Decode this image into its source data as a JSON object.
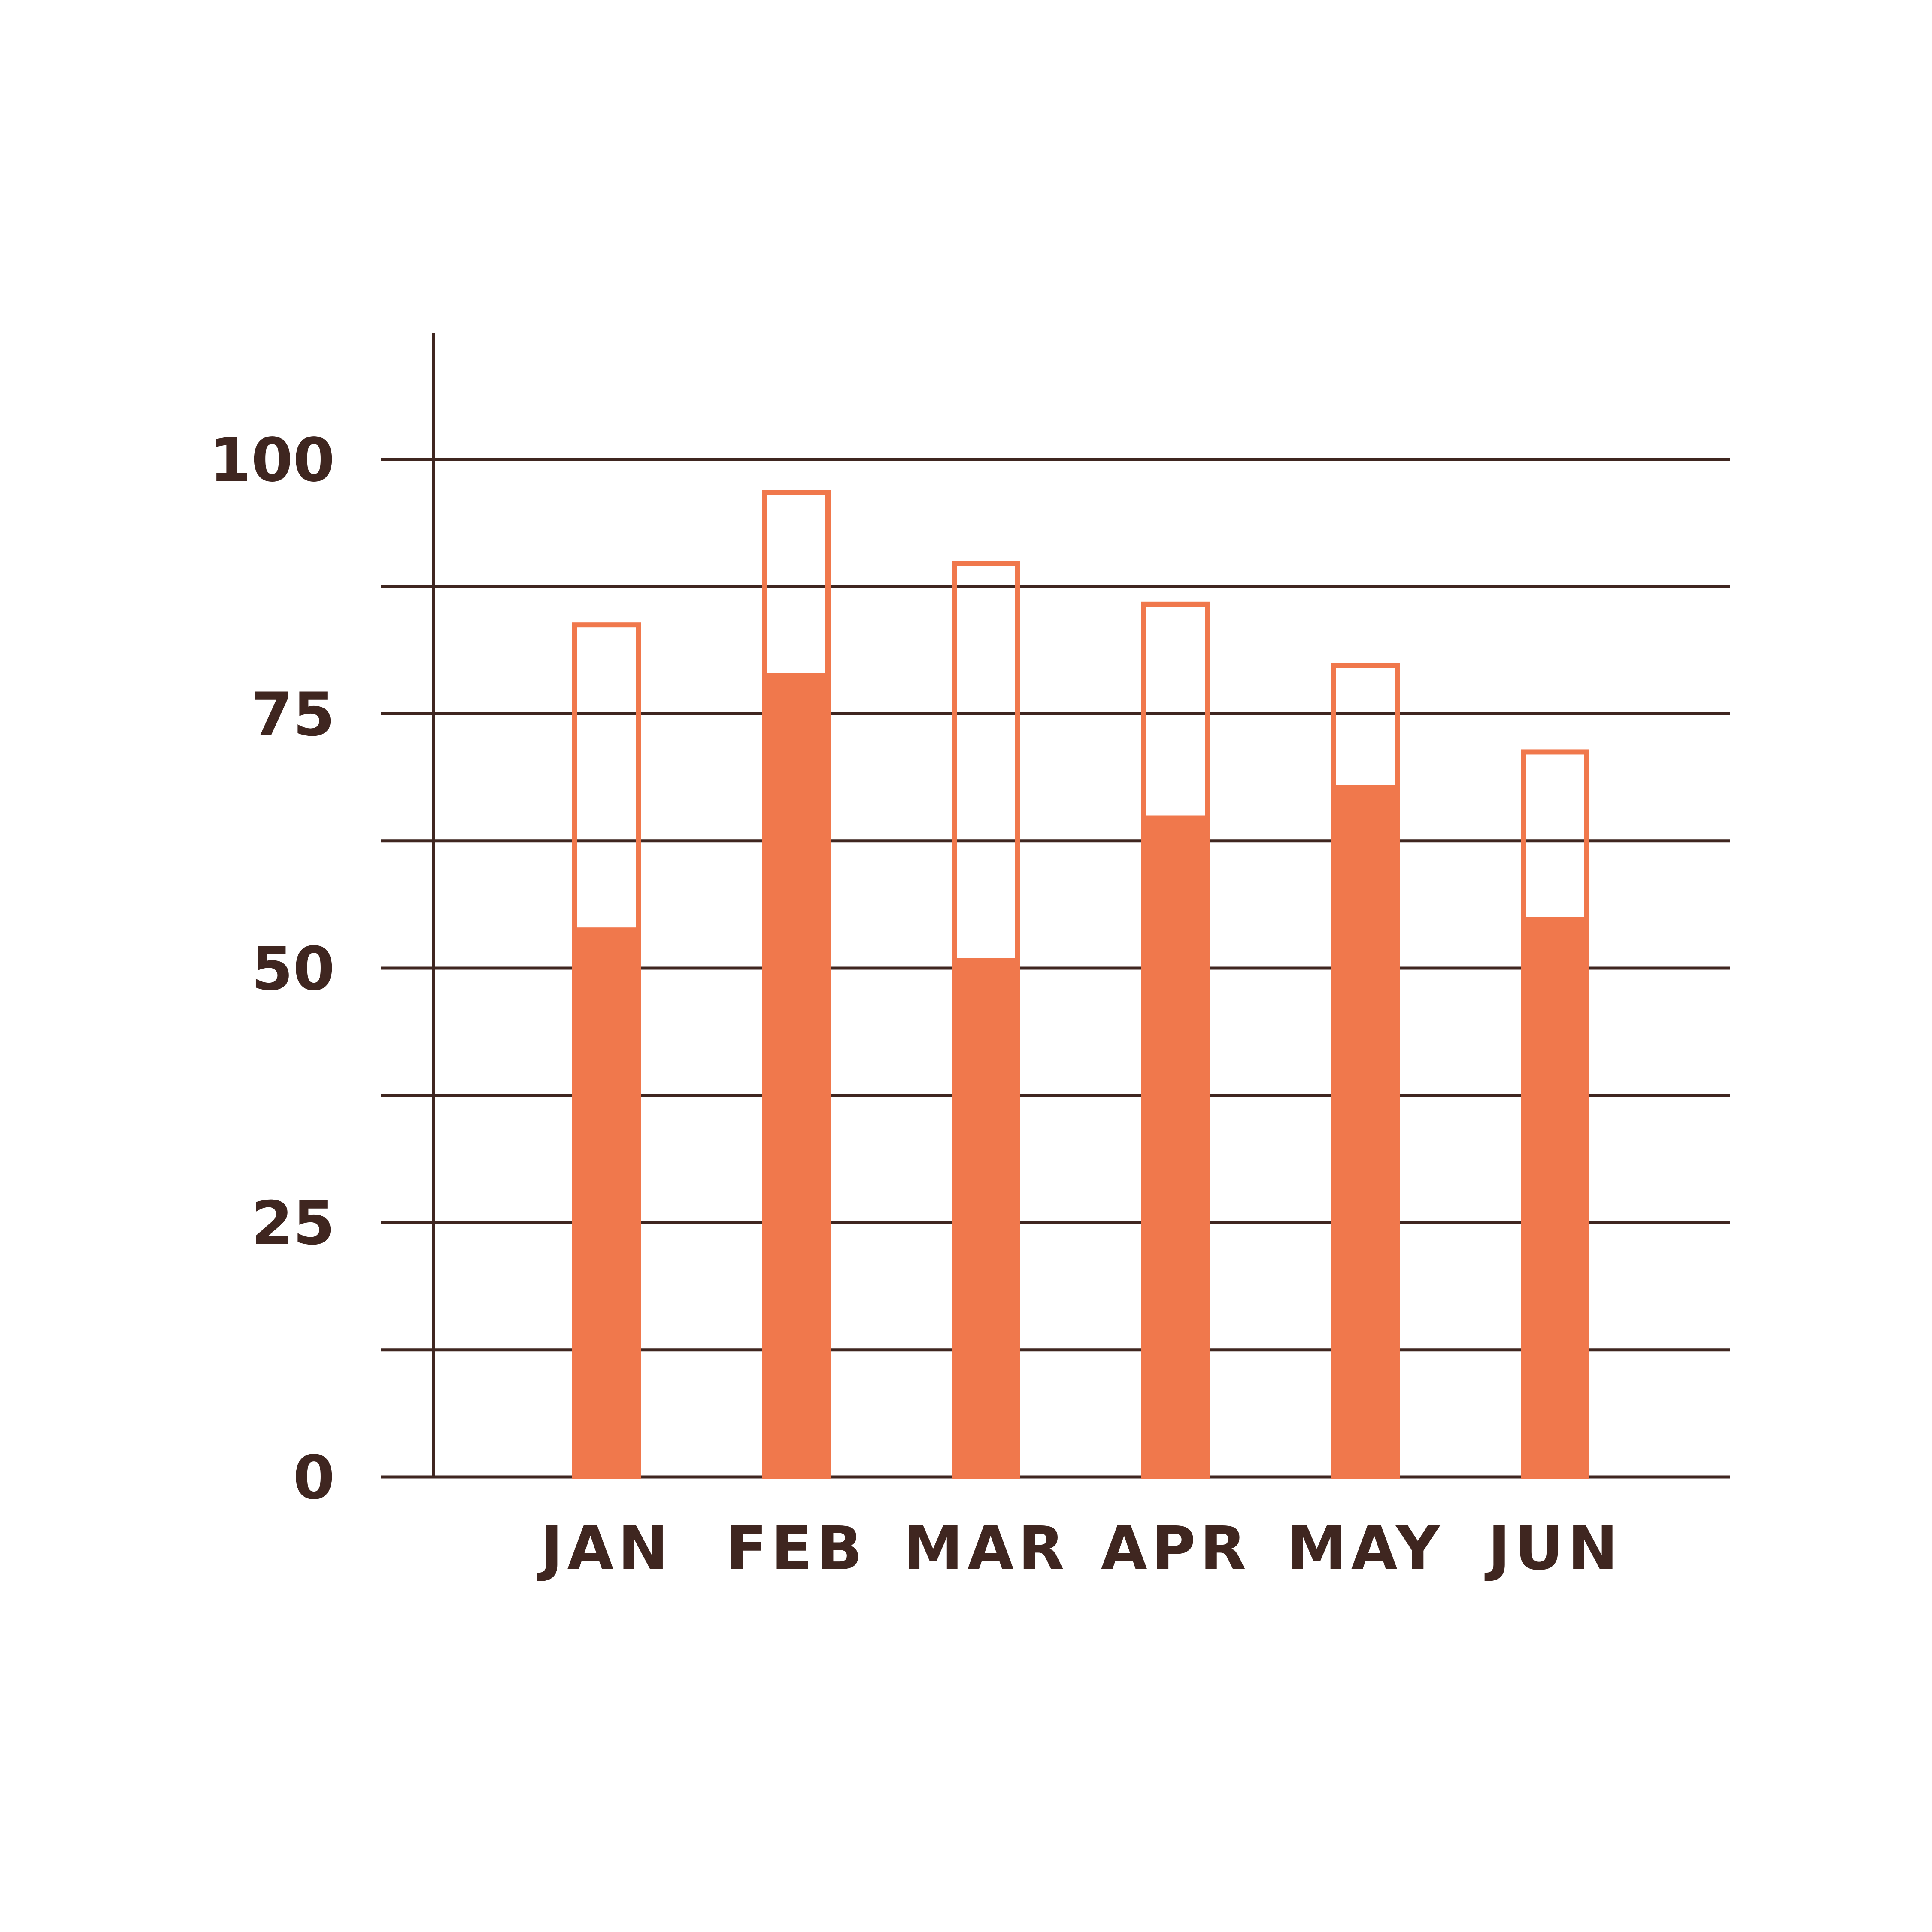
{
  "colors": {
    "bar": "#f0784c",
    "axis": "#3f2620",
    "background": "#ffffff"
  },
  "chart_data": {
    "type": "bar",
    "categories": [
      "JAN",
      "FEB",
      "MAR",
      "APR",
      "MAY",
      "JUN"
    ],
    "series": [
      {
        "values": [
          54,
          79,
          51,
          65,
          68,
          55
        ]
      },
      {
        "values": [
          84,
          97,
          90,
          86,
          80,
          71.5
        ]
      }
    ],
    "y_ticks": [
      "0",
      "25",
      "50",
      "75",
      "100"
    ],
    "ylim": [
      0,
      100
    ],
    "grid": true,
    "title": "",
    "xlabel": "",
    "ylabel": ""
  }
}
